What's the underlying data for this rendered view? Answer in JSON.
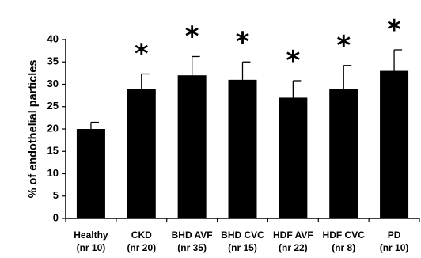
{
  "chart_data": {
    "type": "bar",
    "ylabel": "% of endothelial particles",
    "xlabel": "",
    "ylim": [
      0,
      40
    ],
    "yticks": [
      0,
      5,
      10,
      15,
      20,
      25,
      30,
      35,
      40
    ],
    "grid": false,
    "categories": [
      [
        "Healthy",
        "(nr 10)"
      ],
      [
        "CKD",
        "(nr 20)"
      ],
      [
        "BHD AVF",
        "(nr 35)"
      ],
      [
        "BHD CVC",
        "(nr 15)"
      ],
      [
        "HDF AVF",
        "(nr 22)"
      ],
      [
        "HDF CVC",
        "(nr 8)"
      ],
      [
        "PD",
        "(nr 10)"
      ]
    ],
    "values": [
      20,
      29,
      32,
      31,
      27,
      29,
      33
    ],
    "errors": [
      1.5,
      3.3,
      4.2,
      4.0,
      3.8,
      5.2,
      4.7
    ],
    "significance": [
      "",
      "*",
      "*",
      "*",
      "*",
      "*",
      "*"
    ],
    "bar_color": "#000000"
  }
}
